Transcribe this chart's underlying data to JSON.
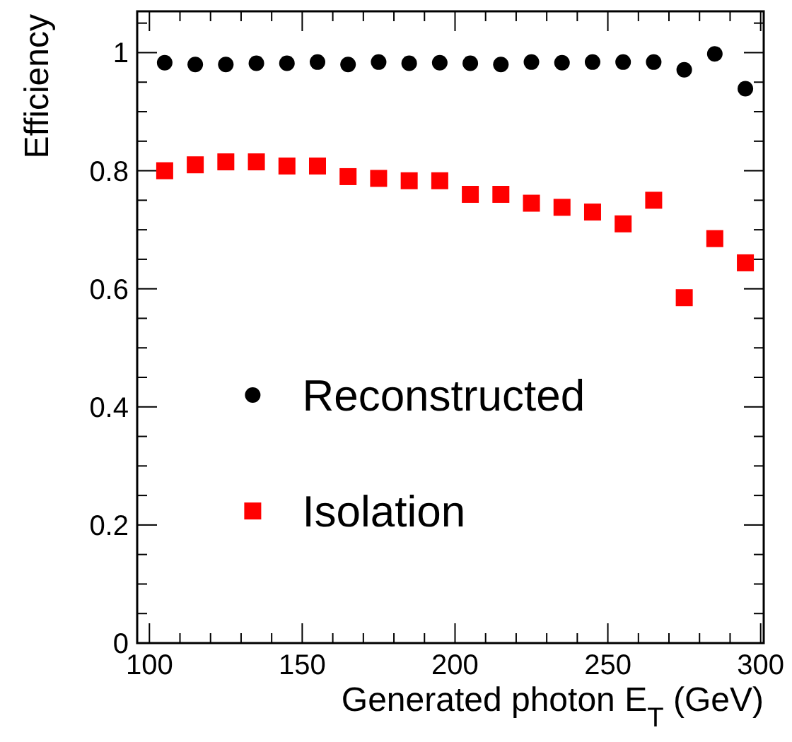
{
  "chart_data": {
    "type": "scatter",
    "xlabel": "Generated photon E$_{T}$ (GeV)",
    "ylabel": "Efficiency",
    "x": [
      105,
      115,
      125,
      135,
      145,
      155,
      165,
      175,
      185,
      195,
      205,
      215,
      225,
      235,
      245,
      255,
      265,
      275,
      285,
      295
    ],
    "xlim": [
      96,
      301
    ],
    "xticks": [
      100,
      150,
      200,
      250,
      300
    ],
    "ylim": [
      0,
      1.07
    ],
    "yticks": [
      0,
      0.2,
      0.4,
      0.6,
      0.8,
      1
    ],
    "grid": false,
    "legend": "bottom",
    "series": [
      {
        "name": "Reconstructed",
        "color": "#000000",
        "marker": "circle",
        "values": [
          0.983,
          0.98,
          0.98,
          0.982,
          0.982,
          0.984,
          0.98,
          0.984,
          0.982,
          0.983,
          0.982,
          0.98,
          0.984,
          0.983,
          0.984,
          0.984,
          0.984,
          0.971,
          0.998,
          0.939
        ]
      },
      {
        "name": "Isolation",
        "color": "#ff0000",
        "marker": "square",
        "values": [
          0.8,
          0.81,
          0.815,
          0.815,
          0.808,
          0.808,
          0.79,
          0.787,
          0.783,
          0.783,
          0.76,
          0.76,
          0.745,
          0.738,
          0.73,
          0.71,
          0.75,
          0.585,
          0.685,
          0.644
        ]
      }
    ]
  }
}
